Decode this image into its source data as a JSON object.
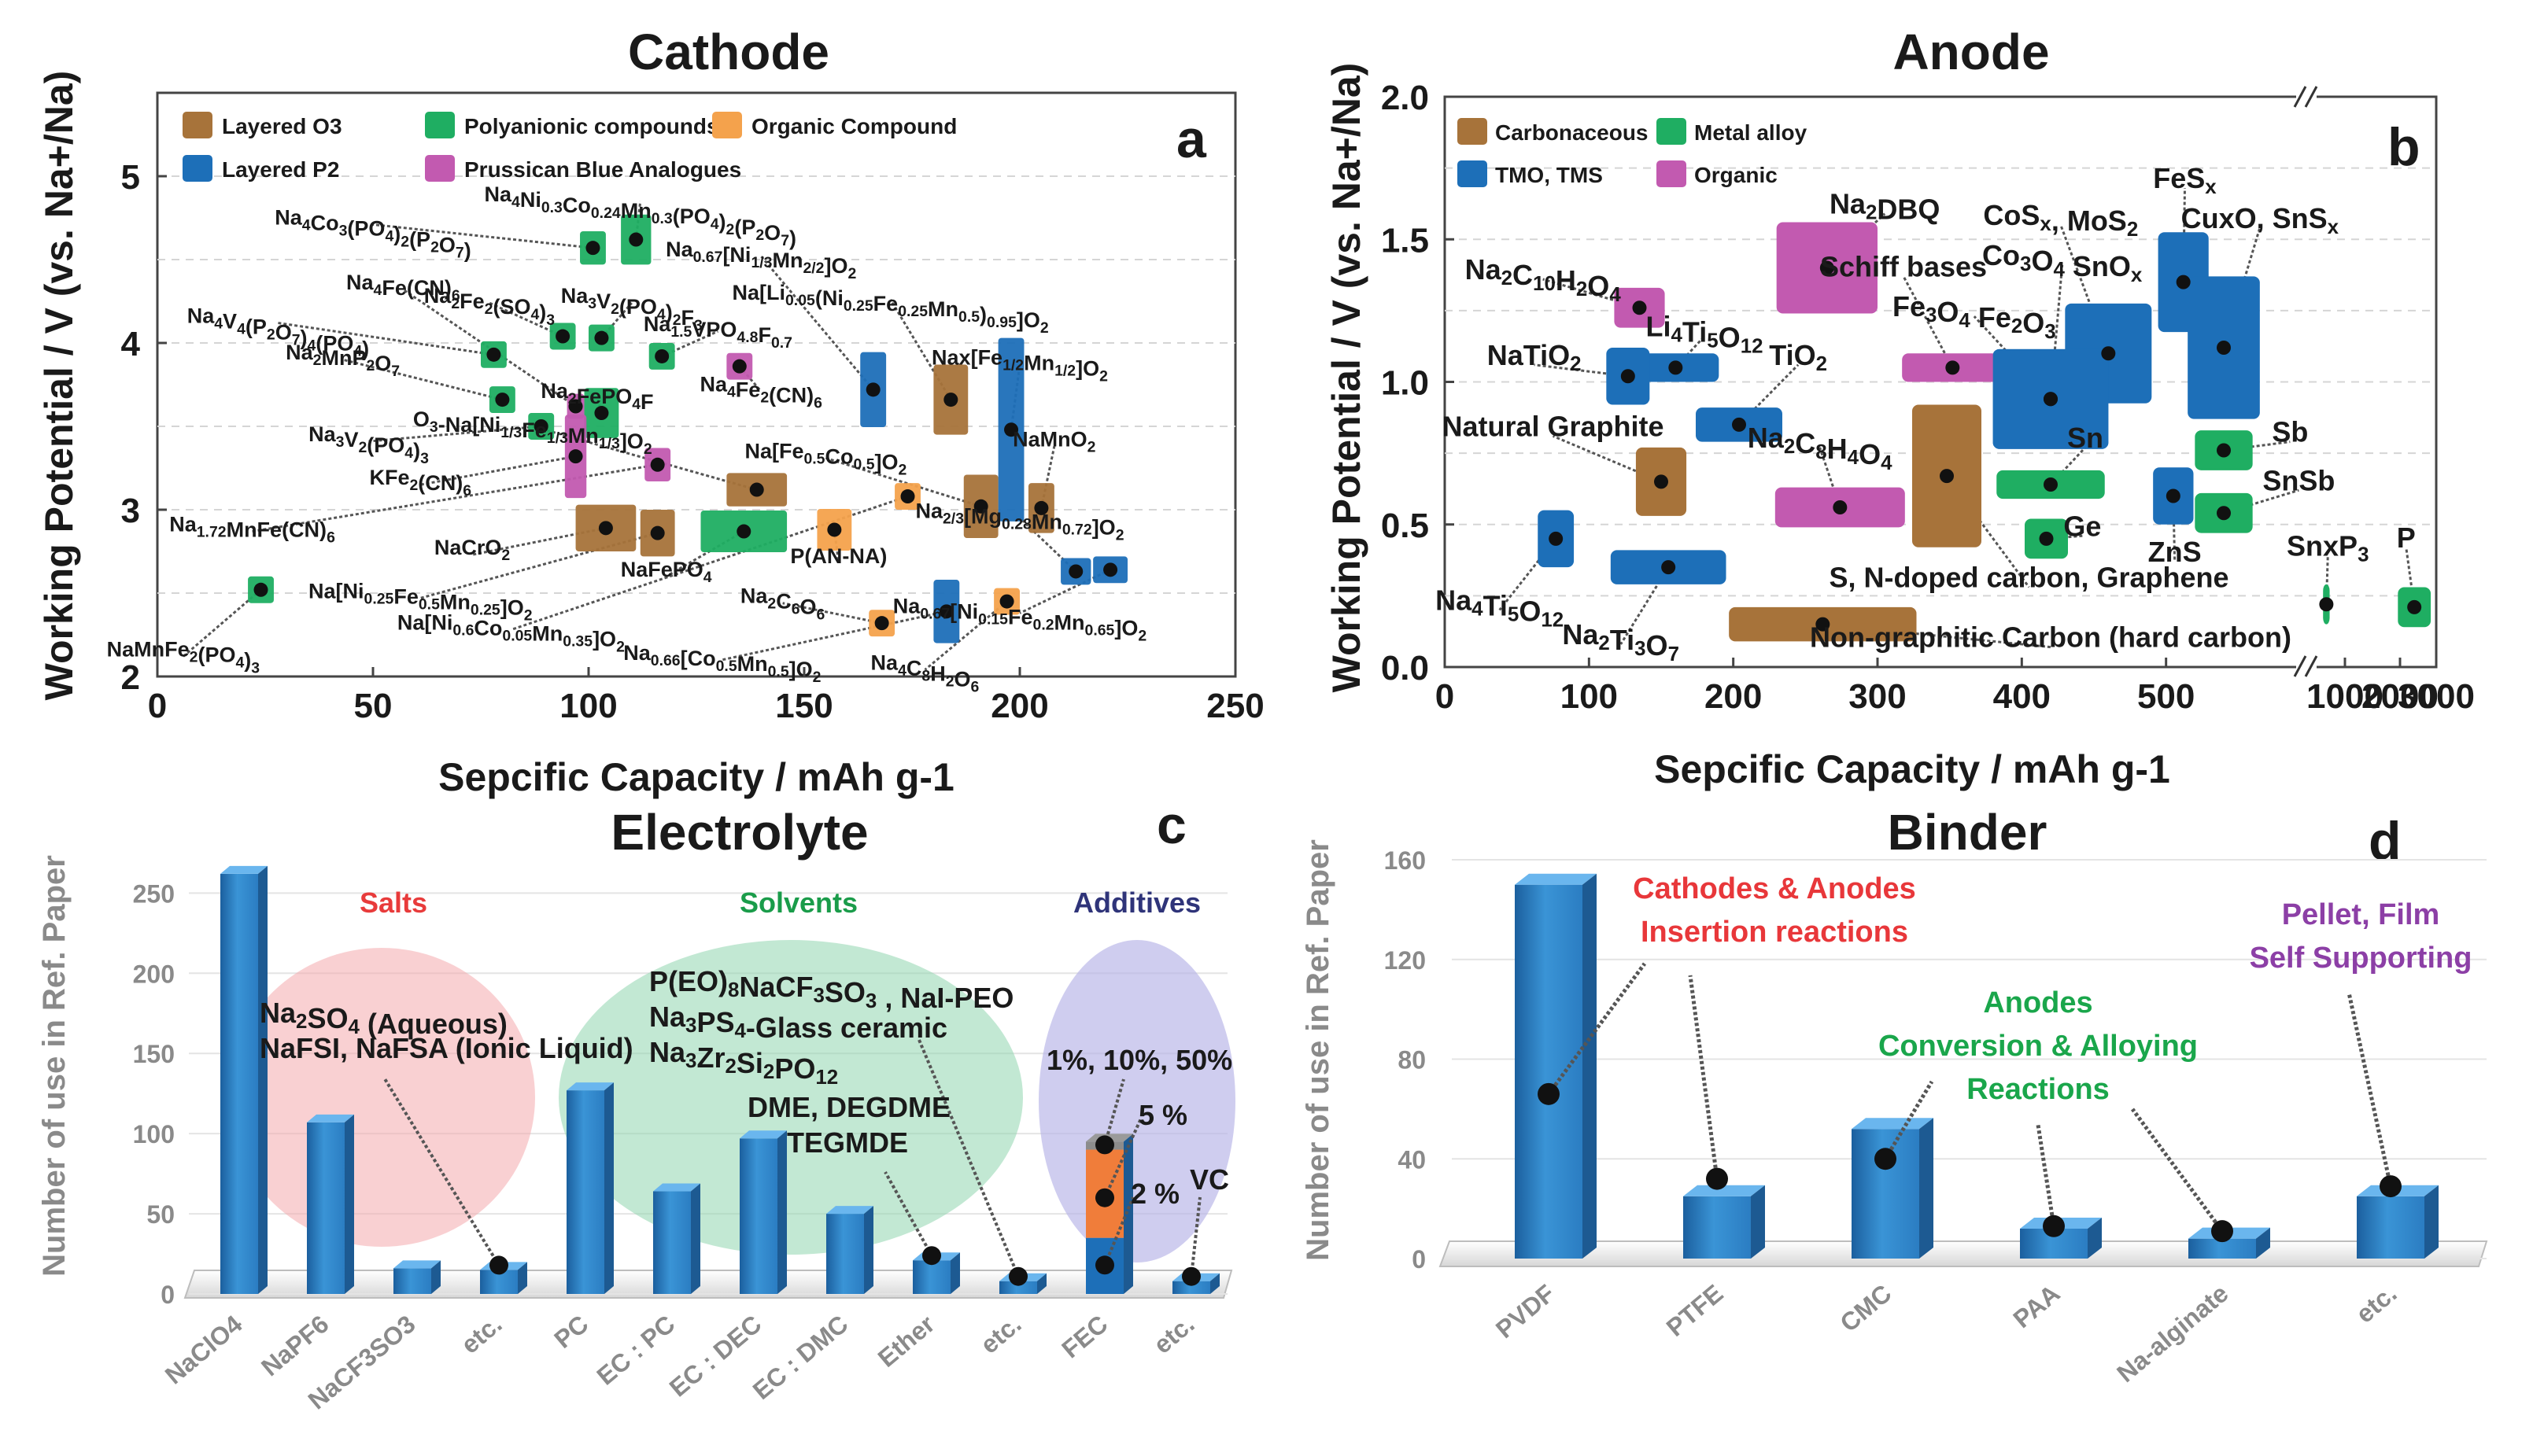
{
  "chart_data": [
    {
      "id": "a",
      "type": "scatter",
      "title": "Cathode",
      "panel_letter": "a",
      "xlabel": "Sepcific Capacity / mAh g-1",
      "ylabel": "Working Potential / V (vs. Na+/Na)",
      "xlim": [
        0,
        250
      ],
      "ylim": [
        2,
        5.5
      ],
      "xticks": [
        "0",
        "50",
        "100",
        "150",
        "200",
        "250"
      ],
      "yticks": [
        "2",
        "3",
        "4",
        "5"
      ],
      "legend": [
        {
          "name": "Layered O3",
          "color": "#a7733a"
        },
        {
          "name": "Polyanionic compounds",
          "color": "#1fae62"
        },
        {
          "name": "Organic Compound",
          "color": "#f4a24c"
        },
        {
          "name": "Layered P2",
          "color": "#1d6fb8"
        },
        {
          "name": "Prussican Blue Analogues",
          "color": "#c25ab0"
        }
      ],
      "points": [
        {
          "label": "Na4Co3(PO4)2(P2O7)",
          "x": 101,
          "y": 4.57,
          "cat": "Polyanionic compounds",
          "lx": 50,
          "ly": 4.71,
          "w": 6,
          "h": 0.2
        },
        {
          "label": "Na4Ni0.3Co0.24Mn0.3(PO4)2(P2O7)",
          "x": 111,
          "y": 4.62,
          "cat": "Polyanionic compounds",
          "lx": 112,
          "ly": 4.85,
          "w": 7,
          "h": 0.3
        },
        {
          "label": "Na4Fe(CN)6",
          "x": 97,
          "y": 3.62,
          "cat": "Prussican Blue Analogues",
          "lx": 57,
          "ly": 4.32,
          "w": 4,
          "h": 0.15
        },
        {
          "label": "Na2Fe2(SO4)3",
          "x": 94,
          "y": 4.04,
          "cat": "Polyanionic compounds",
          "lx": 77,
          "ly": 4.24,
          "w": 6,
          "h": 0.16
        },
        {
          "label": "Na3V2(PO4)2F3",
          "x": 103,
          "y": 4.03,
          "cat": "Polyanionic compounds",
          "lx": 110,
          "ly": 4.24,
          "w": 6,
          "h": 0.16
        },
        {
          "label": "Na0.67[Ni1/3Mn2/2]O2",
          "x": 166,
          "y": 3.72,
          "cat": "Layered P2",
          "lx": 140,
          "ly": 4.52,
          "w": 6,
          "h": 0.45
        },
        {
          "label": "Na[Li0.05(Ni0.25Fe0.25Mn0.5)0.95]O2",
          "x": 184,
          "y": 3.66,
          "cat": "Layered O3",
          "lx": 170,
          "ly": 4.26,
          "w": 8,
          "h": 0.42
        },
        {
          "label": "Na4V4(P2O7)4(PO4)",
          "x": 78,
          "y": 3.93,
          "cat": "Polyanionic compounds",
          "lx": 28,
          "ly": 4.12,
          "w": 6,
          "h": 0.16
        },
        {
          "label": "Na1.5VPO4.8F0.7",
          "x": 117,
          "y": 3.92,
          "cat": "Polyanionic compounds",
          "lx": 130,
          "ly": 4.07,
          "w": 6,
          "h": 0.16
        },
        {
          "label": "Na2MnP2O7",
          "x": 80,
          "y": 3.66,
          "cat": "Polyanionic compounds",
          "lx": 43,
          "ly": 3.9,
          "w": 6,
          "h": 0.16
        },
        {
          "label": "Na2FePO4F",
          "x": 103,
          "y": 3.58,
          "cat": "Polyanionic compounds",
          "lx": 102,
          "ly": 3.67,
          "w": 8,
          "h": 0.3
        },
        {
          "label": "Na4Fe2(CN)6",
          "x": 135,
          "y": 3.86,
          "cat": "Prussican Blue Analogues",
          "lx": 140,
          "ly": 3.71,
          "w": 6,
          "h": 0.16
        },
        {
          "label": "Nax[Fe1/2Mn1/2]O2",
          "x": 198,
          "y": 3.48,
          "cat": "Layered P2",
          "lx": 200,
          "ly": 3.87,
          "w": 6,
          "h": 1.1
        },
        {
          "label": "Na3V2(PO4)3",
          "x": 89,
          "y": 3.5,
          "cat": "Polyanionic compounds",
          "lx": 49,
          "ly": 3.41,
          "w": 6,
          "h": 0.16
        },
        {
          "label": "O3-Na[Ni1/3Fe1/3Mn1/3]O2",
          "x": 139,
          "y": 3.12,
          "cat": "Layered O3",
          "lx": 87,
          "ly": 3.5,
          "w": 14,
          "h": 0.2
        },
        {
          "label": "KFe2(CN)6",
          "x": 97,
          "y": 3.32,
          "cat": "Prussican Blue Analogues",
          "lx": 61,
          "ly": 3.15,
          "w": 5,
          "h": 0.5
        },
        {
          "label": "Na[Fe0.5Co0.5]O2",
          "x": 191,
          "y": 3.02,
          "cat": "Layered O3",
          "lx": 155,
          "ly": 3.31,
          "w": 8,
          "h": 0.38
        },
        {
          "label": "NaMnO2",
          "x": 205,
          "y": 3.01,
          "cat": "Layered O3",
          "lx": 208,
          "ly": 3.38,
          "w": 6,
          "h": 0.3
        },
        {
          "label": "Na1.72MnFe(CN)6",
          "x": 116,
          "y": 3.27,
          "cat": "Prussican Blue Analogues",
          "lx": 22,
          "ly": 2.87,
          "w": 6,
          "h": 0.2
        },
        {
          "label": "NaCrO2",
          "x": 104,
          "y": 2.89,
          "cat": "Layered O3",
          "lx": 73,
          "ly": 2.73,
          "w": 14,
          "h": 0.28
        },
        {
          "label": "Na2/3[Mg0.28Mn0.72]O2",
          "x": 213,
          "y": 2.63,
          "cat": "Layered P2",
          "lx": 200,
          "ly": 2.95,
          "w": 7,
          "h": 0.16
        },
        {
          "label": "Na[Ni0.25Fe0.5Mn0.25]O2",
          "x": 116,
          "y": 2.86,
          "cat": "Layered O3",
          "lx": 61,
          "ly": 2.47,
          "w": 8,
          "h": 0.28
        },
        {
          "label": "NaFePO4",
          "x": 136,
          "y": 2.87,
          "cat": "Polyanionic compounds",
          "lx": 118,
          "ly": 2.6,
          "w": 20,
          "h": 0.25
        },
        {
          "label": "P(AN-NA)",
          "x": 157,
          "y": 2.88,
          "cat": "Organic Compound",
          "lx": 158,
          "ly": 2.68,
          "w": 8,
          "h": 0.25
        },
        {
          "label": "Na0.67[Ni0.15Fe0.2Mn0.65]O2",
          "x": 221,
          "y": 2.64,
          "cat": "Layered P2",
          "lx": 200,
          "ly": 2.38,
          "w": 8,
          "h": 0.16
        },
        {
          "label": "Na[Ni0.6Co0.05Mn0.35]O2",
          "x": 174,
          "y": 3.08,
          "cat": "Organic Compound",
          "lx": 82,
          "ly": 2.28,
          "w": 6,
          "h": 0.16
        },
        {
          "label": "Na2C6O6",
          "x": 168,
          "y": 2.32,
          "cat": "Organic Compound",
          "lx": 145,
          "ly": 2.44,
          "w": 6,
          "h": 0.16
        },
        {
          "label": "Na0.66[Co0.5Mn0.5]O2",
          "x": 183,
          "y": 2.39,
          "cat": "Layered P2",
          "lx": 131,
          "ly": 2.1,
          "w": 6,
          "h": 0.38
        },
        {
          "label": "Na4C8H2O6",
          "x": 197,
          "y": 2.45,
          "cat": "Organic Compound",
          "lx": 178,
          "ly": 2.04,
          "w": 6,
          "h": 0.16
        },
        {
          "label": "NaMnFe2(PO4)3",
          "x": 24,
          "y": 2.52,
          "cat": "Polyanionic compounds",
          "lx": 6,
          "ly": 2.12,
          "w": 6,
          "h": 0.16
        }
      ]
    },
    {
      "id": "b",
      "type": "scatter",
      "title": "Anode",
      "panel_letter": "b",
      "xlabel": "Sepcific Capacity / mAh g-1",
      "ylabel": "Working Potential / V (vs. Na+/Na)",
      "xlim": [
        0,
        3000
      ],
      "x_axis_break": [
        600,
        700
      ],
      "ylim": [
        0,
        2.0
      ],
      "xticks": [
        "0",
        "100",
        "200",
        "300",
        "400",
        "500",
        "1000",
        "2000",
        "3000"
      ],
      "yticks": [
        "0.0",
        "0.5",
        "1.0",
        "1.5",
        "2.0"
      ],
      "legend": [
        {
          "name": "Carbonaceous",
          "color": "#a7733a"
        },
        {
          "name": "Metal alloy",
          "color": "#1fae62"
        },
        {
          "name": "TMO, TMS",
          "color": "#1d6fb8"
        },
        {
          "name": "Organic",
          "color": "#c25ab0"
        }
      ],
      "points": [
        {
          "label": "Na2DBQ",
          "x": 265,
          "y": 1.4,
          "cat": "Organic",
          "lx": 305,
          "ly": 1.59
        },
        {
          "label": "CoSx, MoS2",
          "x": 460,
          "y": 1.1,
          "cat": "TMO, TMS",
          "lx": 427,
          "ly": 1.55
        },
        {
          "label": "FeSx",
          "x": 512,
          "y": 1.35,
          "cat": "TMO, TMS",
          "lx": 513,
          "ly": 1.68
        },
        {
          "label": "CuxO, SnSx",
          "x": 540,
          "y": 1.12,
          "cat": "TMO, TMS",
          "lx": 565,
          "ly": 1.54
        },
        {
          "label": "Na2C10H2O4",
          "x": 135,
          "y": 1.26,
          "cat": "Organic",
          "lx": 68,
          "ly": 1.36
        },
        {
          "label": "Co3O4 SnOx",
          "x": 420,
          "y": 0.94,
          "cat": "TMO, TMS",
          "lx": 428,
          "ly": 1.41
        },
        {
          "label": "Schiff bases",
          "x": 352,
          "y": 1.05,
          "cat": "Organic",
          "lx": 318,
          "ly": 1.37
        },
        {
          "label": "Fe3O4 Fe2O3",
          "x": 420,
          "y": 0.94,
          "cat": "TMO, TMS",
          "lx": 367,
          "ly": 1.23
        },
        {
          "label": "Li4Ti5O12",
          "x": 160,
          "y": 1.05,
          "cat": "TMO, TMS",
          "lx": 180,
          "ly": 1.16
        },
        {
          "label": "NaTiO2",
          "x": 127,
          "y": 1.02,
          "cat": "TMO, TMS",
          "lx": 62,
          "ly": 1.06
        },
        {
          "label": "TiO2",
          "x": 204,
          "y": 0.85,
          "cat": "TMO, TMS",
          "lx": 245,
          "ly": 1.06
        },
        {
          "label": "Natural Graphite",
          "x": 150,
          "y": 0.65,
          "cat": "Carbonaceous",
          "lx": 75,
          "ly": 0.81
        },
        {
          "label": "Na2C8H4O4",
          "x": 274,
          "y": 0.56,
          "cat": "Organic",
          "lx": 260,
          "ly": 0.77
        },
        {
          "label": "Sn",
          "x": 420,
          "y": 0.64,
          "cat": "Metal alloy",
          "lx": 444,
          "ly": 0.77
        },
        {
          "label": "Sb",
          "x": 540,
          "y": 0.76,
          "cat": "Metal alloy",
          "lx": 586,
          "ly": 0.79
        },
        {
          "label": "SnSb",
          "x": 540,
          "y": 0.54,
          "cat": "Metal alloy",
          "lx": 592,
          "ly": 0.62
        },
        {
          "label": "ZnS",
          "x": 505,
          "y": 0.6,
          "cat": "TMO, TMS",
          "lx": 506,
          "ly": 0.37
        },
        {
          "label": "Ge",
          "x": 417,
          "y": 0.45,
          "cat": "Metal alloy",
          "lx": 442,
          "ly": 0.46
        },
        {
          "label": "SnxP3",
          "x": 993,
          "y": 0.22,
          "cat": "Metal alloy",
          "lx": 1020,
          "ly": 0.39
        },
        {
          "label": "P",
          "x": 2600,
          "y": 0.21,
          "cat": "Metal alloy",
          "lx": 2450,
          "ly": 0.42
        },
        {
          "label": "Na4Ti5O12",
          "x": 77,
          "y": 0.45,
          "cat": "TMO, TMS",
          "lx": 38,
          "ly": 0.2
        },
        {
          "label": "Na2Ti3O7",
          "x": 155,
          "y": 0.35,
          "cat": "TMO, TMS",
          "lx": 122,
          "ly": 0.08
        },
        {
          "label": "S, N-doped carbon, Graphene",
          "x": 348,
          "y": 0.67,
          "cat": "Carbonaceous",
          "lx": 405,
          "ly": 0.28
        },
        {
          "label": "Non-graphitic Carbon (hard carbon)",
          "x": 262,
          "y": 0.15,
          "cat": "Carbonaceous",
          "lx": 420,
          "ly": 0.07
        }
      ]
    },
    {
      "id": "c",
      "type": "bar",
      "title": "Electrolyte",
      "panel_letter": "c",
      "ylabel": "Number of use in Ref. Paper",
      "ylim": [
        0,
        260
      ],
      "yticks": [
        "0",
        "50",
        "100",
        "150",
        "200",
        "250"
      ],
      "categories": [
        "NaClO4",
        "NaPF6",
        "NaCF3SO3",
        "etc.",
        "PC",
        "EC : PC",
        "EC : DEC",
        "EC : DMC",
        "Ether",
        "etc.",
        "FEC",
        "etc."
      ],
      "values": [
        262,
        107,
        16,
        15,
        127,
        64,
        97,
        50,
        21,
        8,
        95,
        8
      ],
      "fec_stack": [
        {
          "label": "2 %",
          "value": 35,
          "color": "#1d6fb8"
        },
        {
          "label": "5 %",
          "value": 55,
          "color": "#f07d3a"
        },
        {
          "label": "1%, 10%, 50%",
          "value": 5,
          "color": "#8c8c8c"
        }
      ],
      "groups": [
        {
          "name": "Salts",
          "color": "#e83b3b",
          "note": [
            "Na2SO4 (Aqueous)",
            "NaFSI, NaFSA (Ionic Liquid)"
          ]
        },
        {
          "name": "Solvents",
          "color": "#1a9c4a",
          "note": [
            "P(EO)8NaCF3SO3 , NaI-PEO",
            "Na3PS4-Glass ceramic",
            "Na3Zr2Si2PO12"
          ],
          "note2": [
            "DME, DEGDME",
            "TEGMDE"
          ]
        },
        {
          "name": "Additives",
          "color": "#2f3479",
          "note": [
            "VC"
          ]
        }
      ]
    },
    {
      "id": "d",
      "type": "bar",
      "title": "Binder",
      "panel_letter": "d",
      "ylabel": "Number of use in Ref. Paper",
      "ylim": [
        0,
        160
      ],
      "yticks": [
        "0",
        "40",
        "80",
        "120",
        "160"
      ],
      "categories": [
        "PVDF",
        "PTFE",
        "CMC",
        "PAA",
        "Na-alginate",
        "etc."
      ],
      "values": [
        150,
        25,
        52,
        12,
        8,
        25
      ],
      "marker_values": [
        66,
        32,
        40,
        13,
        11,
        29
      ],
      "annotations": [
        {
          "lines": [
            "Cathodes & Anodes",
            "Insertion reactions"
          ],
          "color": "#e8373a"
        },
        {
          "lines": [
            "Anodes",
            "Conversion & Alloying",
            "Reactions"
          ],
          "color": "#1aa64b"
        },
        {
          "lines": [
            "Pellet, Film",
            "Self Supporting"
          ],
          "color": "#8c3fa6"
        }
      ]
    }
  ]
}
